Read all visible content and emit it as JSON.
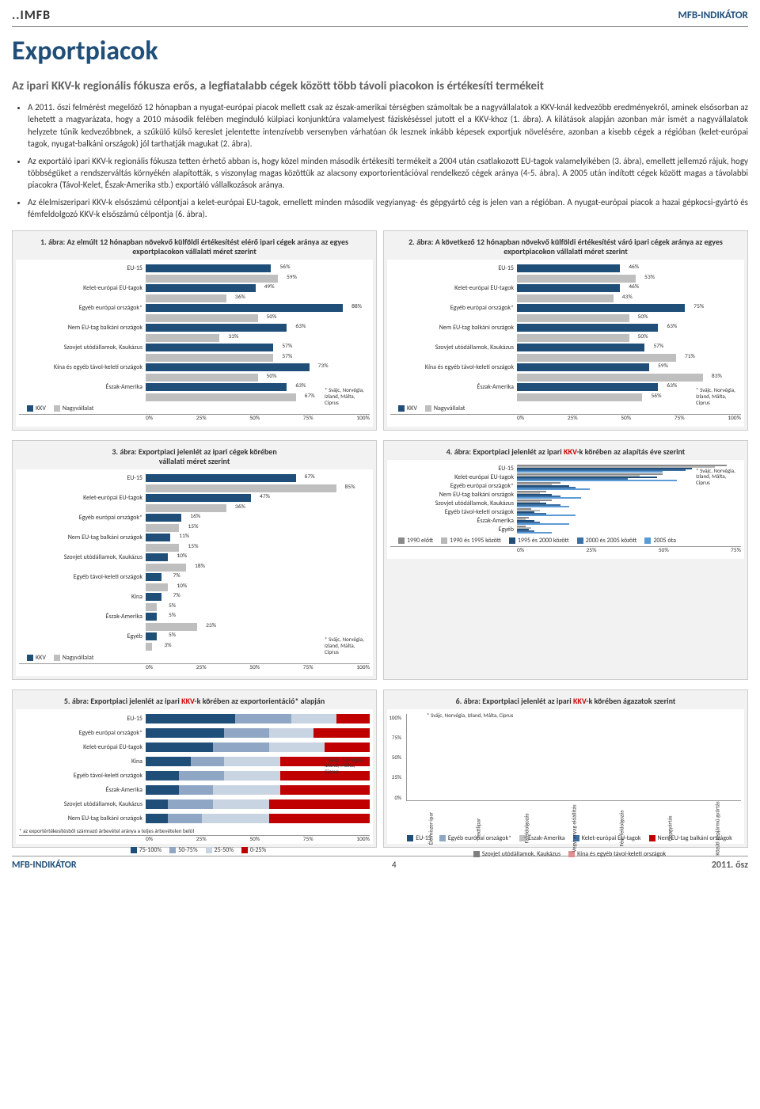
{
  "header": {
    "logo": "MFB",
    "right": "MFB-INDIKÁTOR"
  },
  "title": "Exportpiacok",
  "subtitle": "Az ipari KKV-k regionális fókusza erős, a legfiatalabb cégek között több távoli piacokon is értékesíti termékeit",
  "bullets": [
    "A 2011. őszi felmérést megelőző 12 hónapban a nyugat-európai piacok mellett csak az észak-amerikai térségben számoltak be a nagyvállalatok a KKV-knál kedvezőbb eredményekről, aminek elsősorban az lehetett a magyarázata, hogy a 2010 második felében meginduló külpiaci konjunktúra valamelyest fáziskéséssel jutott el a KKV-khoz (1. ábra). A kilátások alapján azonban már ismét a nagyvállalatok helyzete tűnik kedvezőbbnek, a szűkülő külső kereslet jelentette intenzívebb versenyben várhatóan ők lesznek inkább képesek exportjuk növelésére, azonban a kisebb cégek a régióban (kelet-európai tagok, nyugat-balkáni országok) jól tarthatják magukat (2. ábra).",
    "Az exportáló ipari KKV-k regionális fókusza tetten érhető abban is, hogy közel minden második értékesíti termékeit a 2004 után csatlakozott EU-tagok valamelyikében (3. ábra), emellett jellemző rájuk, hogy többségüket a rendszerváltás környékén alapították, s viszonylag magas közöttük az alacsony exportorientációval rendelkező cégek aránya (4-5. ábra). A 2005 után indított cégek között magas a távolabbi piacokra (Távol-Kelet, Észak-Amerika stb.) exportáló vállalkozások aránya.",
    "Az élelmiszeripari KKV-k elsőszámú célpontjai a kelet-európai EU-tagok, emellett minden második vegyianyag- és gépgyártó cég is jelen van a régióban. A nyugat-európai piacok a hazai gépkocsi-gyártó és fémfeldolgozó KKV-k elsőszámú célpontja (6. ábra)."
  ],
  "colors": {
    "kkv": "#1f4e79",
    "nagy": "#bfbfbf",
    "accent": "#808080",
    "p1990": "#8a8a8a",
    "p1995": "#b8b8b8",
    "p2000": "#1f4e79",
    "p2005": "#3d6fa3",
    "p2005p": "#5b9bd5",
    "r75": "#1f4e79",
    "r50": "#8fa7c4",
    "r25": "#c9d4e3",
    "r0": "#c00000"
  },
  "chart1": {
    "title": "1. ábra: Az elmúlt 12 hónapban növekvő külföldi értékesítést elérő ipari cégek aránya az egyes exportpiacokon vállalati méret szerint",
    "rows": [
      {
        "l": "EU-15",
        "a": 56,
        "b": 59
      },
      {
        "l": "Kelet-európai EU-tagok",
        "a": 49,
        "b": 36
      },
      {
        "l": "Egyéb európai országok*",
        "a": 88,
        "b": 50
      },
      {
        "l": "Nem EU-tag balkáni országok",
        "a": 63,
        "b": 33
      },
      {
        "l": "Szovjet utódállamok, Kaukázus",
        "a": 57,
        "b": 57
      },
      {
        "l": "Kína és egyéb távol-keleti országok",
        "a": 73,
        "b": 50
      },
      {
        "l": "Észak-Amerika",
        "a": 63,
        "b": 67
      }
    ],
    "leg": [
      "KKV",
      "Nagyvállalat"
    ],
    "xticks": [
      "0%",
      "25%",
      "50%",
      "75%",
      "100%"
    ],
    "note": "* Svájc, Norvégia, Izland, Málta, Ciprus"
  },
  "chart2": {
    "title": "2. ábra: A következő 12 hónapban növekvő külföldi értékesítést váró ipari cégek aránya az egyes exportpiacokon vállalati méret szerint",
    "rows": [
      {
        "l": "EU-15",
        "a": 46,
        "b": 53
      },
      {
        "l": "Kelet-európai EU-tagok",
        "a": 46,
        "b": 43
      },
      {
        "l": "Egyéb európai országok*",
        "a": 75,
        "b": 50
      },
      {
        "l": "Nem EU-tag balkáni országok",
        "a": 63,
        "b": 50
      },
      {
        "l": "Szovjet utódállamok, Kaukázus",
        "a": 57,
        "b": 71
      },
      {
        "l": "Kína és egyéb távol-keleti országok",
        "a": 59,
        "b": 83
      },
      {
        "l": "Észak-Amerika",
        "a": 63,
        "b": 56
      }
    ],
    "leg": [
      "KKV",
      "Nagyvállalat"
    ],
    "xticks": [
      "0%",
      "25%",
      "50%",
      "75%",
      "100%"
    ],
    "note": "* Svájc, Norvégia, Izland, Málta, Ciprus"
  },
  "chart3": {
    "title_a": "3. ábra: Exportpiaci jelenlét az ipari cégek körében",
    "title_b": "vállalati méret szerint",
    "rows": [
      {
        "l": "EU-15",
        "a": 67,
        "b": 85
      },
      {
        "l": "Kelet-európai EU-tagok",
        "a": 47,
        "b": 36
      },
      {
        "l": "Egyéb európai országok*",
        "a": 16,
        "b": 15
      },
      {
        "l": "Nem EU-tag balkáni országok",
        "a": 11,
        "b": 15
      },
      {
        "l": "Szovjet utódállamok, Kaukázus",
        "a": 10,
        "b": 18
      },
      {
        "l": "Egyéb távol-keleti országok",
        "a": 7,
        "b": 10
      },
      {
        "l": "Kína",
        "a": 7,
        "b": 5
      },
      {
        "l": "Észak-Amerika",
        "a": 5,
        "b": 23
      },
      {
        "l": "Egyéb",
        "a": 5,
        "b": 3
      }
    ],
    "leg": [
      "KKV",
      "Nagyvállalat"
    ],
    "xticks": [
      "0%",
      "25%",
      "50%",
      "75%",
      "100%"
    ],
    "note": "* Svájc, Norvégia, Izland, Málta, Ciprus"
  },
  "chart4": {
    "title_a": "4. ábra: Exportpiaci jelenlét az ipari ",
    "title_kkv": "KKV",
    "title_b": "-k körében az alapítás éve szerint",
    "cats": [
      "EU-15",
      "Kelet-európai EU-tagok",
      "Egyéb európai országok*",
      "Nem EU-tag balkáni országok",
      "Szovjet utódállamok, Kaukázus",
      "Egyéb távol-keleti országok",
      "Észak-Amerika",
      "Egyéb"
    ],
    "leg": [
      "1990 előtt",
      "1990 és 1995 között",
      "1995 és 2000 között",
      "2000 és 2005 között",
      "2005 óta"
    ],
    "xticks": [
      "0%",
      "25%",
      "50%",
      "75%"
    ],
    "note": "* Svájc, Norvégia, Izland, Málta, Ciprus"
  },
  "chart5": {
    "title_a": "5. ábra: Exportpiaci jelenlét az ipari ",
    "title_kkv": "KKV",
    "title_b": "-k körében az exportorientáció* alapján",
    "cats": [
      "EU-15",
      "Egyéb európai országok*",
      "Kelet-európai EU-tagok",
      "Kína",
      "Egyéb távol-keleti országok",
      "Észak-Amerika",
      "Szovjet utódállamok, Kaukázus",
      "Nem EU-tag balkáni országok"
    ],
    "leg": [
      "75-100%",
      "50-75%",
      "25-50%",
      "0-25%"
    ],
    "xticks": [
      "0%",
      "25%",
      "50%",
      "75%",
      "100%"
    ],
    "note": "* Svájc, Norvégia, Izland, Málta, Ciprus",
    "subnote": "* az exportértékesítésből származó árbevétel aránya a teljes árbevételen belül"
  },
  "chart6": {
    "title_a": "6. ábra: Exportpiaci jelenlét az ipari ",
    "title_kkv": "KKV",
    "title_b": "-k körében ágazatok szerint",
    "yticks": [
      "100%",
      "75%",
      "50%",
      "25%",
      "0%"
    ],
    "xcats": [
      "Élelmiszer-ipar",
      "Textilipar",
      "Fafeldolgozás",
      "Vegyi anyag előállítás",
      "Fém-feldolgozás",
      "Gépgyártás",
      "Közúti gépjármű gyártás"
    ],
    "leg": [
      "EU-15",
      "Egyéb európai országok*",
      "Észak-Amerika",
      "Kelet-európai EU-tagok",
      "Nem EU-tag balkáni országok",
      "Szovjet utódállamok, Kaukázus",
      "Kína és egyéb távol-keleti országok"
    ],
    "legcolors": [
      "#1f4e79",
      "#8fa7c4",
      "#bfbfbf",
      "#3d6fa3",
      "#c00000",
      "#808080",
      "#e09090"
    ],
    "note": "* Svájc, Norvégia, Izland, Málta, Ciprus"
  },
  "footer": {
    "left": "MFB-INDIKÁTOR",
    "page": "4",
    "right": "2011. ősz"
  }
}
